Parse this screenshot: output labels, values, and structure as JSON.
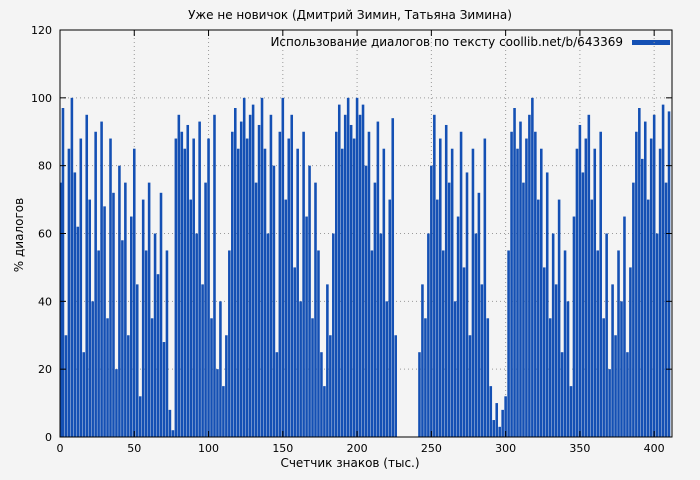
{
  "chart_data": {
    "type": "bar",
    "title": "Уже не новичок (Дмитрий Зимин, Татьяна Зимина)",
    "legend_label": "Использование диалогов по тексту coollib.net/b/643369",
    "legend_position": "top-right",
    "xlabel": "Счетчик знаков (тыс.)",
    "ylabel": "% диалогов",
    "xlim": [
      0,
      412
    ],
    "ylim": [
      0,
      120
    ],
    "x_ticks": [
      0,
      50,
      100,
      150,
      200,
      250,
      300,
      350,
      400
    ],
    "y_ticks": [
      0,
      20,
      40,
      60,
      80,
      100,
      120
    ],
    "grid": true,
    "bar_color": "#1450b4",
    "x_start": 0,
    "x_step": 2,
    "values": [
      75,
      97,
      30,
      85,
      100,
      78,
      62,
      88,
      25,
      95,
      70,
      40,
      90,
      55,
      93,
      68,
      35,
      88,
      72,
      20,
      80,
      58,
      75,
      30,
      65,
      85,
      45,
      12,
      70,
      55,
      75,
      35,
      60,
      48,
      72,
      28,
      55,
      8,
      2,
      88,
      95,
      90,
      85,
      92,
      70,
      88,
      60,
      93,
      45,
      75,
      88,
      35,
      95,
      20,
      40,
      15,
      30,
      55,
      90,
      97,
      85,
      93,
      100,
      88,
      95,
      98,
      75,
      92,
      100,
      85,
      60,
      95,
      80,
      25,
      90,
      100,
      70,
      88,
      95,
      50,
      85,
      40,
      90,
      65,
      80,
      35,
      75,
      55,
      25,
      15,
      45,
      30,
      60,
      90,
      98,
      85,
      95,
      100,
      92,
      88,
      100,
      95,
      98,
      80,
      90,
      55,
      75,
      93,
      60,
      85,
      40,
      70,
      94,
      30,
      0,
      0,
      0,
      0,
      0,
      0,
      0,
      25,
      45,
      35,
      60,
      80,
      95,
      70,
      88,
      55,
      92,
      75,
      85,
      40,
      65,
      90,
      50,
      78,
      30,
      85,
      60,
      72,
      45,
      88,
      35,
      15,
      5,
      10,
      3,
      8,
      12,
      55,
      90,
      97,
      85,
      93,
      75,
      88,
      95,
      100,
      90,
      70,
      85,
      50,
      78,
      35,
      60,
      45,
      70,
      25,
      55,
      40,
      15,
      65,
      85,
      92,
      78,
      88,
      95,
      70,
      85,
      55,
      90,
      35,
      60,
      20,
      45,
      30,
      55,
      40,
      65,
      25,
      50,
      75,
      90,
      97,
      82,
      93,
      70,
      88,
      95,
      60,
      85,
      98,
      75,
      96
    ]
  }
}
